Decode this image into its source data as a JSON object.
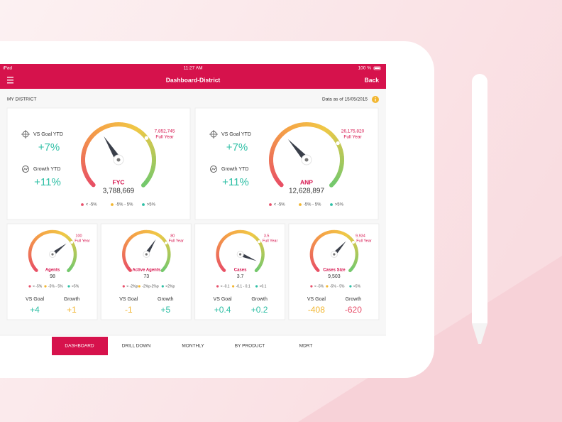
{
  "status_bar": {
    "device": "iPad",
    "time": "11:27 AM",
    "battery": "100 %"
  },
  "nav": {
    "title": "Dashboard-District",
    "back": "Back"
  },
  "section": {
    "title": "MY DISTRICT",
    "data_date": "Data as of 15/05/2015"
  },
  "main_cards": [
    {
      "vs_goal_label": "VS Goal YTD",
      "vs_goal": "+7%",
      "growth_label": "Growth YTD",
      "growth": "+11%",
      "metric": "FYC",
      "value": "3,788,669",
      "target": "7,852,745",
      "target_label": "Full Year",
      "legend": [
        "< -5%",
        "-5% - 5%",
        ">5%"
      ]
    },
    {
      "vs_goal_label": "VS Goal YTD",
      "vs_goal": "+7%",
      "growth_label": "Growth YTD",
      "growth": "+11%",
      "metric": "ANP",
      "value": "12,628,897",
      "target": "26,175,820",
      "target_label": "Full Year",
      "legend": [
        "< -5%",
        "-5% - 5%",
        ">5%"
      ]
    }
  ],
  "small_cards": [
    {
      "metric": "Agents",
      "value": "98",
      "target": "100",
      "target_label": "Full Year",
      "legend": [
        "< -5%",
        "-5% - 5%",
        ">5%"
      ],
      "vs_goal_label": "VS Goal",
      "vs_goal": "+4",
      "growth_label": "Growth",
      "growth": "+1"
    },
    {
      "metric": "Active Agents",
      "value": "73",
      "target": "80",
      "target_label": "Full Year",
      "legend": [
        "< -2%p",
        "-2%p-2%p",
        ">2%p"
      ],
      "vs_goal_label": "VS Goal",
      "vs_goal": "-1",
      "growth_label": "Growth",
      "growth": "+5"
    },
    {
      "metric": "Cases",
      "value": "3.7",
      "target": "3.5",
      "target_label": "Full Year",
      "legend": [
        "< -0.1",
        "-0.1 - 0.1",
        ">0.1"
      ],
      "vs_goal_label": "VS Goal",
      "vs_goal": "+0.4",
      "growth_label": "Growth",
      "growth": "+0.2"
    },
    {
      "metric": "Cases Size",
      "value": "9,503",
      "target": "9,934",
      "target_label": "Full Year",
      "legend": [
        "< -5%",
        "-5% - 5%",
        ">5%"
      ],
      "vs_goal_label": "VS Goal",
      "vs_goal": "-408",
      "growth_label": "Growth",
      "growth": "-620"
    }
  ],
  "tabs": [
    "DASHBOARD",
    "DRILL DOWN",
    "MONTHLY",
    "BY PRODUCT",
    "MDRT"
  ]
}
